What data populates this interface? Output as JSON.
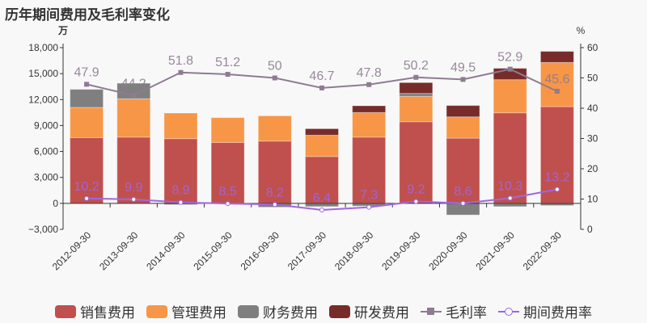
{
  "title": "历年期间费用及毛利率变化",
  "chart_data": {
    "type": "bar",
    "stacked": true,
    "title": "历年期间费用及毛利率变化",
    "left_axis": {
      "unit": "万",
      "min": -3000,
      "max": 18000,
      "ticks": [
        -3000,
        0,
        3000,
        6000,
        9000,
        12000,
        15000,
        18000
      ],
      "tick_labels": [
        "−3,000",
        "0",
        "3,000",
        "6,000",
        "9,000",
        "12,000",
        "15,000",
        "18,000"
      ]
    },
    "right_axis": {
      "unit": "%",
      "min": 0,
      "max": 60,
      "ticks": [
        0,
        10,
        20,
        30,
        40,
        50,
        60
      ]
    },
    "categories": [
      "2012-09-30",
      "2013-09-30",
      "2014-09-30",
      "2015-09-30",
      "2016-09-30",
      "2017-09-30",
      "2018-09-30",
      "2019-09-30",
      "2020-09-30",
      "2021-09-30",
      "2022-09-30"
    ],
    "series": [
      {
        "name": "销售费用",
        "type": "bar",
        "axis": "left",
        "color": "#c0504d",
        "values": [
          7600,
          7660,
          7480,
          7040,
          7200,
          5420,
          7660,
          9440,
          7540,
          10470,
          11180
        ]
      },
      {
        "name": "管理费用",
        "type": "bar",
        "axis": "left",
        "color": "#f79646",
        "values": [
          3490,
          4430,
          2960,
          2870,
          2920,
          2460,
          2840,
          2930,
          2460,
          3830,
          5110
        ]
      },
      {
        "name": "财务费用",
        "type": "bar",
        "axis": "left",
        "color": "#7f7f7f",
        "values": [
          2090,
          1800,
          -150,
          -30,
          -440,
          -370,
          -310,
          340,
          -1340,
          -370,
          -250
        ]
      },
      {
        "name": "研发费用",
        "type": "bar",
        "axis": "left",
        "color": "#772c2a",
        "values": [
          0,
          0,
          0,
          0,
          0,
          750,
          780,
          1250,
          1310,
          1310,
          1280
        ]
      },
      {
        "name": "毛利率",
        "type": "line",
        "axis": "right",
        "color": "#8e7b92",
        "marker": "square",
        "values": [
          47.9,
          44.2,
          51.8,
          51.2,
          50,
          46.7,
          47.8,
          50.2,
          49.5,
          52.9,
          45.6
        ]
      },
      {
        "name": "期间费用率",
        "type": "line",
        "axis": "right",
        "color": "#a066e0",
        "marker": "circle",
        "values": [
          10.2,
          9.9,
          8.9,
          8.5,
          8.2,
          6.4,
          7.3,
          9.2,
          8.6,
          10.3,
          13.2
        ]
      }
    ],
    "legend": "bottom",
    "grid": false
  }
}
